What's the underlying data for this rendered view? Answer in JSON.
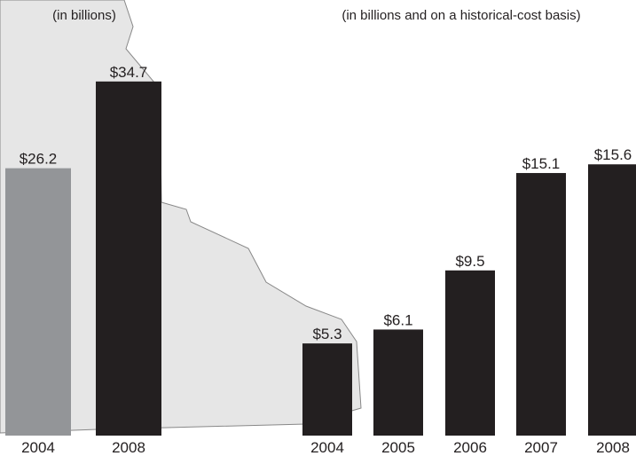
{
  "colors": {
    "background": "#ffffff",
    "map_fill": "#e6e6e6",
    "map_stroke": "#888888",
    "bar_dark": "#231f20",
    "bar_gray": "#939598",
    "text": "#231f20"
  },
  "chart_data": [
    {
      "type": "bar",
      "title": "",
      "subtitle": "(in billions)",
      "categories": [
        "2004",
        "2008"
      ],
      "values": [
        26.2,
        34.7
      ],
      "value_labels": [
        "$26.2",
        "$34.7"
      ],
      "bar_colors": [
        "#939598",
        "#231f20"
      ],
      "xlabel": "",
      "ylabel": "",
      "ylim": [
        0,
        45
      ],
      "grid": false,
      "legend": "none"
    },
    {
      "type": "bar",
      "title": "",
      "subtitle": "(in billions and on a historical-cost basis)",
      "categories": [
        "2004",
        "2005",
        "2006",
        "2007",
        "2008"
      ],
      "values": [
        5.3,
        6.1,
        9.5,
        15.1,
        15.6
      ],
      "value_labels": [
        "$5.3",
        "$6.1",
        "$9.5",
        "$15.1",
        "$15.6"
      ],
      "bar_colors": [
        "#231f20",
        "#231f20",
        "#231f20",
        "#231f20",
        "#231f20"
      ],
      "xlabel": "",
      "ylabel": "",
      "ylim": [
        0,
        20
      ],
      "grid": false,
      "legend": "none"
    }
  ]
}
